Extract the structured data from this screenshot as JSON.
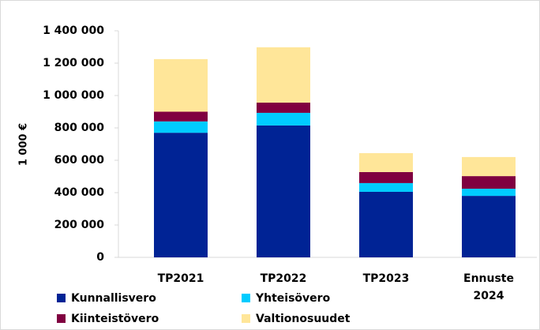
{
  "chart_data": {
    "type": "bar",
    "stacked": true,
    "y_label": "1 000 €",
    "categories": [
      "TP2021",
      "TP2022",
      "TP2023",
      "Ennuste 2024"
    ],
    "series": [
      {
        "name": "Kunnallisvero",
        "color": "#002395",
        "values": [
          770000,
          815000,
          405000,
          380000
        ]
      },
      {
        "name": "Yhteisövero",
        "color": "#00ccff",
        "values": [
          70000,
          78000,
          54000,
          44000
        ]
      },
      {
        "name": "Kiinteistövero",
        "color": "#800040",
        "values": [
          60000,
          63000,
          68000,
          78000
        ]
      },
      {
        "name": "Valtionosuudet",
        "color": "#ffe699",
        "values": [
          325000,
          342000,
          117000,
          118000
        ]
      }
    ],
    "ylim": [
      0,
      1400000
    ],
    "yticks": [
      0,
      {
        "value": 200000,
        "label": "200 000"
      },
      {
        "value": 400000,
        "label": "400 000"
      },
      {
        "value": 600000,
        "label": "600 000"
      },
      {
        "value": 800000,
        "label": "800 000"
      },
      {
        "value": 1000000,
        "label": "1 000 000"
      },
      {
        "value": 1200000,
        "label": "1 200 000"
      },
      {
        "value": 1400000,
        "label": "1 400 000"
      }
    ],
    "grid": false
  }
}
